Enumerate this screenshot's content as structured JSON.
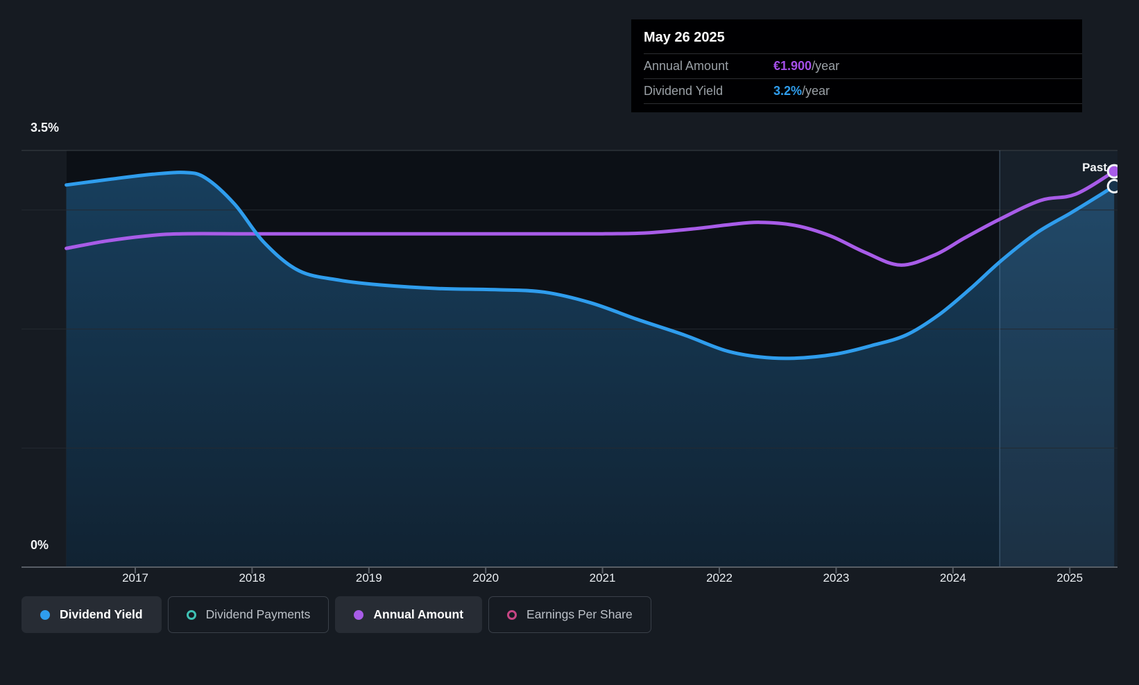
{
  "page": {
    "background": "#161b22",
    "plot_background": "#0c1016"
  },
  "tooltip": {
    "date": "May 26 2025",
    "rows": [
      {
        "label": "Annual Amount",
        "value": "€1.900",
        "suffix": "/year",
        "color": "#a44fe8"
      },
      {
        "label": "Dividend Yield",
        "value": "3.2%",
        "suffix": "/year",
        "color": "#2f9ded"
      }
    ]
  },
  "axes": {
    "y_top_label": "3.5%",
    "y_zero_label": "0%",
    "x_tick_labels": [
      "2017",
      "2018",
      "2019",
      "2020",
      "2021",
      "2022",
      "2023",
      "2024",
      "2025"
    ]
  },
  "past_region": {
    "label": "Past",
    "start_year": 2024.4
  },
  "legend": [
    {
      "label": "Dividend Yield",
      "color": "#2f9ded",
      "marker": "filled",
      "active": true
    },
    {
      "label": "Dividend Payments",
      "color": "#3ec1b4",
      "marker": "open",
      "active": false
    },
    {
      "label": "Annual Amount",
      "color": "#a85ce8",
      "marker": "filled",
      "active": true
    },
    {
      "label": "Earnings Per Share",
      "color": "#c64583",
      "marker": "open",
      "active": false
    }
  ],
  "chart_data": {
    "type": "line",
    "title": "Dividend history and yield",
    "x_axis": {
      "unit": "year",
      "range": [
        2016.41,
        2025.38
      ],
      "ticks": [
        2017,
        2018,
        2019,
        2020,
        2021,
        2022,
        2023,
        2024,
        2025
      ]
    },
    "y_axis_yield": {
      "unit": "%",
      "range": [
        0,
        3.5
      ],
      "labeled_ticks": [
        3.5,
        0
      ],
      "gridlines_pct": [
        3.5,
        3,
        2,
        1
      ]
    },
    "y_axis_amount": {
      "unit": "EUR/year",
      "range": [
        0,
        2.0
      ]
    },
    "past_region_start_year": 2024.4,
    "series": [
      {
        "name": "Dividend Yield",
        "axis": "yield",
        "unit": "%",
        "color": "#2f9ded",
        "area": true,
        "points": [
          [
            2016.41,
            3.21
          ],
          [
            2016.8,
            3.26
          ],
          [
            2017.15,
            3.3
          ],
          [
            2017.42,
            3.315
          ],
          [
            2017.6,
            3.27
          ],
          [
            2017.85,
            3.05
          ],
          [
            2018.1,
            2.73
          ],
          [
            2018.4,
            2.49
          ],
          [
            2018.75,
            2.41
          ],
          [
            2019.1,
            2.37
          ],
          [
            2019.6,
            2.34
          ],
          [
            2020.1,
            2.33
          ],
          [
            2020.5,
            2.31
          ],
          [
            2020.9,
            2.22
          ],
          [
            2021.3,
            2.08
          ],
          [
            2021.7,
            1.95
          ],
          [
            2022.05,
            1.82
          ],
          [
            2022.35,
            1.765
          ],
          [
            2022.65,
            1.755
          ],
          [
            2023.0,
            1.79
          ],
          [
            2023.3,
            1.86
          ],
          [
            2023.6,
            1.95
          ],
          [
            2023.88,
            2.12
          ],
          [
            2024.15,
            2.34
          ],
          [
            2024.42,
            2.58
          ],
          [
            2024.72,
            2.81
          ],
          [
            2025.0,
            2.97
          ],
          [
            2025.2,
            3.09
          ],
          [
            2025.38,
            3.2
          ]
        ]
      },
      {
        "name": "Annual Amount",
        "axis": "amount",
        "unit": "EUR/year",
        "color": "#a85ce8",
        "area": false,
        "points": [
          [
            2016.41,
            1.53
          ],
          [
            2016.75,
            1.565
          ],
          [
            2017.1,
            1.59
          ],
          [
            2017.4,
            1.6
          ],
          [
            2018.0,
            1.6
          ],
          [
            2019.0,
            1.6
          ],
          [
            2020.0,
            1.6
          ],
          [
            2021.0,
            1.6
          ],
          [
            2021.4,
            1.605
          ],
          [
            2021.8,
            1.625
          ],
          [
            2022.1,
            1.645
          ],
          [
            2022.35,
            1.655
          ],
          [
            2022.65,
            1.64
          ],
          [
            2022.95,
            1.59
          ],
          [
            2023.25,
            1.51
          ],
          [
            2023.55,
            1.45
          ],
          [
            2023.85,
            1.5
          ],
          [
            2024.1,
            1.58
          ],
          [
            2024.4,
            1.67
          ],
          [
            2024.75,
            1.76
          ],
          [
            2025.05,
            1.79
          ],
          [
            2025.38,
            1.9
          ]
        ]
      }
    ],
    "latest": {
      "date": "May 26 2025",
      "annual_amount_eur": 1.9,
      "dividend_yield_pct": 3.2
    }
  },
  "colors": {
    "yield_line": "#2f9ded",
    "amount_line": "#a85ce8",
    "area_fill_rgb": "47,157,237",
    "grid_major": "#3a4047",
    "grid_minor": "#242a31",
    "axis": "#585e66",
    "past_fill": "rgba(125,175,225,0.10)",
    "past_divider": "rgba(160,200,240,0.25)",
    "dot_ring": "#f2f6f8",
    "yield_dot_fill": "#17344c"
  }
}
